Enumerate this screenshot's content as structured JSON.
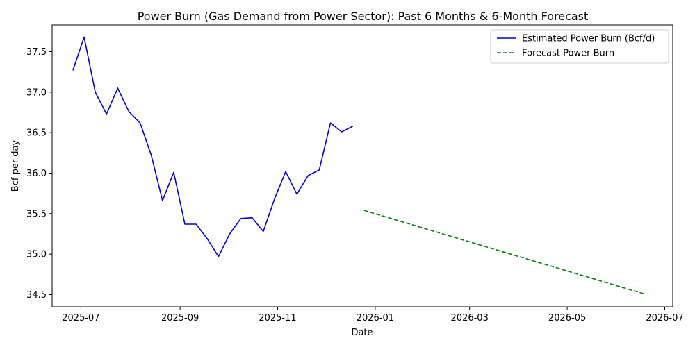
{
  "chart_data": {
    "type": "line",
    "title": "Power Burn (Gas Demand from Power Sector): Past 6 Months & 6-Month Forecast",
    "xlabel": "Date",
    "ylabel": "Bcf per day",
    "x_axis_type": "date",
    "xlim": [
      "2025-06-13",
      "2026-07-06"
    ],
    "ylim": [
      34.35,
      37.83
    ],
    "x_ticks": [
      {
        "value": "2025-07-01",
        "label": "2025-07"
      },
      {
        "value": "2025-09-01",
        "label": "2025-09"
      },
      {
        "value": "2025-11-01",
        "label": "2025-11"
      },
      {
        "value": "2026-01-01",
        "label": "2026-01"
      },
      {
        "value": "2026-03-01",
        "label": "2026-03"
      },
      {
        "value": "2026-05-01",
        "label": "2026-05"
      },
      {
        "value": "2026-07-01",
        "label": "2026-07"
      }
    ],
    "y_ticks": [
      34.5,
      35.0,
      35.5,
      36.0,
      36.5,
      37.0,
      37.5
    ],
    "y_tick_labels": [
      "34.5",
      "35.0",
      "35.5",
      "36.0",
      "36.5",
      "37.0",
      "37.5"
    ],
    "grid": false,
    "legend_position": "top-right",
    "series": [
      {
        "name": "Estimated Power Burn (Bcf/d)",
        "color": "#0000dd",
        "style": "solid",
        "points": [
          {
            "x": "2025-06-26",
            "y": 37.27
          },
          {
            "x": "2025-07-03",
            "y": 37.68
          },
          {
            "x": "2025-07-10",
            "y": 37.0
          },
          {
            "x": "2025-07-17",
            "y": 36.73
          },
          {
            "x": "2025-07-24",
            "y": 37.05
          },
          {
            "x": "2025-07-31",
            "y": 36.76
          },
          {
            "x": "2025-08-07",
            "y": 36.62
          },
          {
            "x": "2025-08-14",
            "y": 36.22
          },
          {
            "x": "2025-08-21",
            "y": 35.66
          },
          {
            "x": "2025-08-28",
            "y": 36.01
          },
          {
            "x": "2025-09-04",
            "y": 35.37
          },
          {
            "x": "2025-09-11",
            "y": 35.37
          },
          {
            "x": "2025-09-18",
            "y": 35.19
          },
          {
            "x": "2025-09-25",
            "y": 34.97
          },
          {
            "x": "2025-10-02",
            "y": 35.25
          },
          {
            "x": "2025-10-09",
            "y": 35.44
          },
          {
            "x": "2025-10-16",
            "y": 35.45
          },
          {
            "x": "2025-10-23",
            "y": 35.28
          },
          {
            "x": "2025-10-30",
            "y": 35.68
          },
          {
            "x": "2025-11-06",
            "y": 36.02
          },
          {
            "x": "2025-11-13",
            "y": 35.74
          },
          {
            "x": "2025-11-20",
            "y": 35.97
          },
          {
            "x": "2025-11-27",
            "y": 36.04
          },
          {
            "x": "2025-12-04",
            "y": 36.62
          },
          {
            "x": "2025-12-11",
            "y": 36.51
          },
          {
            "x": "2025-12-18",
            "y": 36.58
          }
        ]
      },
      {
        "name": "Forecast Power Burn",
        "color": "#008000",
        "style": "dashed",
        "points": [
          {
            "x": "2025-12-25",
            "y": 35.54
          },
          {
            "x": "2026-06-18",
            "y": 34.51
          }
        ]
      }
    ]
  }
}
